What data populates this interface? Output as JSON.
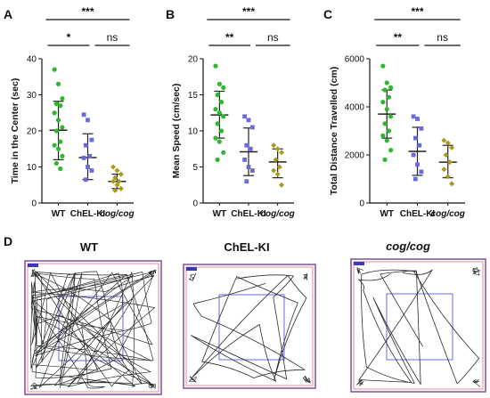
{
  "colors": {
    "wt": "#2eb82e",
    "chel": "#6a6adb",
    "cog": "#a89a1c",
    "arena": "#8a5a9a",
    "center": "#6a6af0"
  },
  "chart_data": [
    {
      "panel": "A",
      "type": "scatter",
      "categories": [
        "WT",
        "ChEL-KI",
        "cog/cog"
      ],
      "ylabel": "Time in the Center (sec)",
      "ylim": [
        0,
        40
      ],
      "yticks": [
        0,
        10,
        20,
        30,
        40
      ],
      "series": [
        {
          "values": [
            37,
            33,
            29,
            27.5,
            27,
            25,
            23,
            21,
            20,
            17,
            16,
            15,
            13,
            11,
            9.5
          ],
          "mean": 20.2,
          "sd_low": 12.0,
          "sd_high": 28.2
        },
        {
          "values": [
            24.5,
            23,
            17.5,
            16,
            13,
            12.5,
            10,
            9,
            6.5
          ],
          "mean": 12.6,
          "sd_low": 6.5,
          "sd_high": 19.2
        },
        {
          "values": [
            10,
            9,
            8,
            7,
            6,
            6,
            5,
            4,
            3.5
          ],
          "mean": 6.0,
          "sd_low": 4.0,
          "sd_high": 8.0
        }
      ],
      "significance": [
        {
          "label": "***",
          "from": 0,
          "to": 2,
          "level": 1
        },
        {
          "label": "*",
          "from": 0,
          "to": 1,
          "level": 0
        },
        {
          "label": "ns",
          "from": 1,
          "to": 2,
          "level": 0
        }
      ]
    },
    {
      "panel": "B",
      "type": "scatter",
      "categories": [
        "WT",
        "ChEL-KI",
        "cog/cog"
      ],
      "ylabel": "Mean Speed (cm/sec)",
      "ylim": [
        0,
        20
      ],
      "yticks": [
        0,
        5,
        10,
        15,
        20
      ],
      "series": [
        {
          "values": [
            19,
            16.5,
            16,
            15,
            14,
            13,
            12.5,
            12,
            11,
            10,
            9,
            8.5,
            7,
            6
          ],
          "mean": 12.2,
          "sd_low": 9.0,
          "sd_high": 15.5
        },
        {
          "values": [
            12,
            11.5,
            10.5,
            8,
            7.5,
            6,
            5,
            4.5,
            3
          ],
          "mean": 7.1,
          "sd_low": 3.8,
          "sd_high": 10.4
        },
        {
          "values": [
            8,
            7.5,
            7,
            6,
            5,
            4.5,
            4,
            2.5
          ],
          "mean": 5.7,
          "sd_low": 3.5,
          "sd_high": 7.5
        }
      ],
      "significance": [
        {
          "label": "***",
          "from": 0,
          "to": 2,
          "level": 1
        },
        {
          "label": "**",
          "from": 0,
          "to": 1,
          "level": 0
        },
        {
          "label": "ns",
          "from": 1,
          "to": 2,
          "level": 0
        }
      ]
    },
    {
      "panel": "C",
      "type": "scatter",
      "categories": [
        "WT",
        "ChEL-KI",
        "cog/cog"
      ],
      "ylabel": "Total Distance Travelled  (cm)",
      "ylim": [
        0,
        6000
      ],
      "yticks": [
        0,
        2000,
        4000,
        6000
      ],
      "series": [
        {
          "values": [
            5700,
            5000,
            4800,
            4700,
            4400,
            4200,
            3900,
            3600,
            3300,
            3000,
            2800,
            2600,
            2200,
            1800
          ],
          "mean": 3700,
          "sd_low": 2700,
          "sd_high": 4700
        },
        {
          "values": [
            3600,
            3500,
            3100,
            2700,
            2400,
            2000,
            1600,
            1300,
            1000
          ],
          "mean": 2150,
          "sd_low": 1150,
          "sd_high": 3150
        },
        {
          "values": [
            2600,
            2500,
            2300,
            2000,
            1700,
            1400,
            1100,
            800
          ],
          "mean": 1700,
          "sd_low": 1050,
          "sd_high": 2400
        }
      ],
      "significance": [
        {
          "label": "***",
          "from": 0,
          "to": 2,
          "level": 1
        },
        {
          "label": "**",
          "from": 0,
          "to": 1,
          "level": 0
        },
        {
          "label": "ns",
          "from": 1,
          "to": 2,
          "level": 0
        }
      ]
    }
  ],
  "figure": {
    "panel_d_label": "D",
    "tracks": [
      {
        "title": "WT",
        "density": "dense"
      },
      {
        "title": "ChEL-KI",
        "density": "sparse"
      },
      {
        "title": "cog/cog",
        "density": "sparse"
      }
    ]
  }
}
